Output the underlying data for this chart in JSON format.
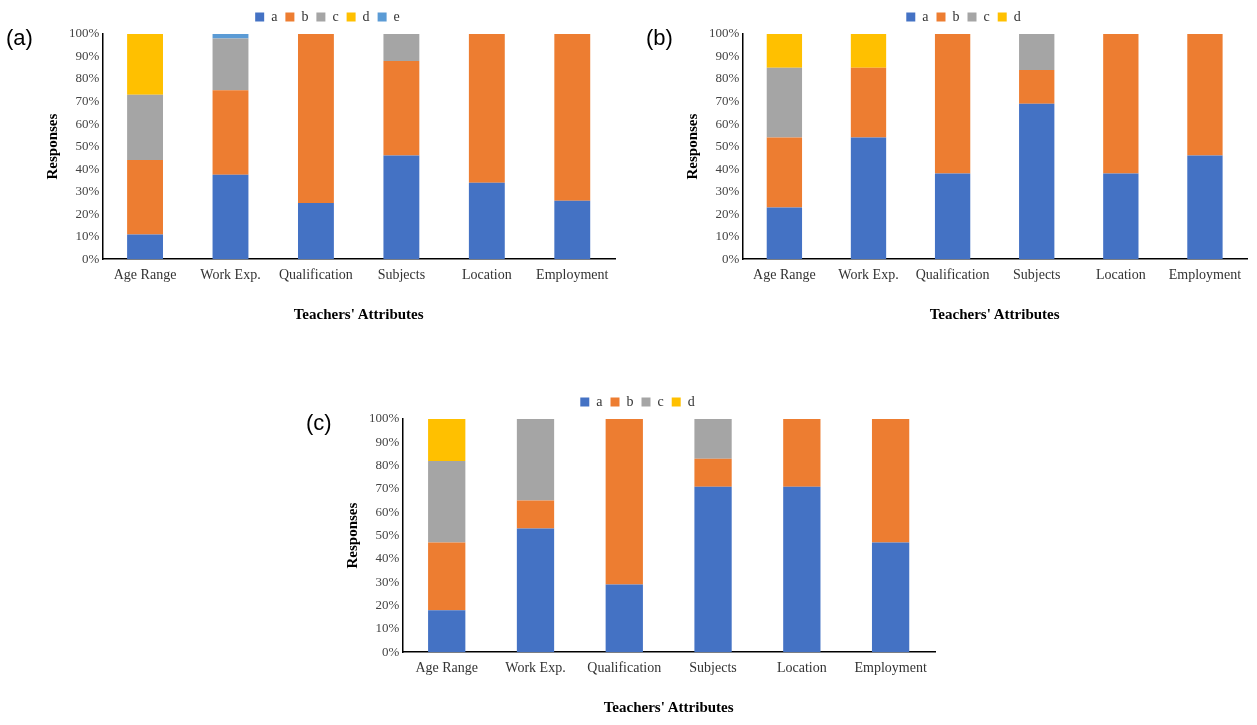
{
  "chart_data": [
    {
      "type": "bar",
      "stacked": true,
      "annotations": [
        "(a)"
      ],
      "xlabel": "Teachers' Attributes",
      "ylabel": "Responses",
      "legend": "top",
      "grid": false,
      "categories": [
        "Age Range",
        "Work Exp.",
        "Qualification",
        "Subjects",
        "Location",
        "Employment"
      ],
      "ylim": [
        0,
        100
      ],
      "yticks": [
        {
          "value": 0,
          "label": "0%"
        },
        {
          "value": 10,
          "label": "10%"
        },
        {
          "value": 20,
          "label": "20%"
        },
        {
          "value": 30,
          "label": "30%"
        },
        {
          "value": 40,
          "label": "40%"
        },
        {
          "value": 50,
          "label": "50%"
        },
        {
          "value": 60,
          "label": "60%"
        },
        {
          "value": 70,
          "label": "70%"
        },
        {
          "value": 80,
          "label": "80%"
        },
        {
          "value": 90,
          "label": "90%"
        },
        {
          "value": 100,
          "label": "100%"
        }
      ],
      "series": [
        {
          "name": "a",
          "color": "#4472c4",
          "values": [
            11,
            37.5,
            25,
            46,
            34,
            26
          ]
        },
        {
          "name": "b",
          "color": "#ed7d31",
          "values": [
            33,
            37.5,
            75,
            42,
            66,
            74
          ]
        },
        {
          "name": "c",
          "color": "#a5a5a5",
          "values": [
            29,
            23,
            null,
            12,
            null,
            null
          ]
        },
        {
          "name": "d",
          "color": "#ffc000",
          "values": [
            27,
            null,
            null,
            null,
            null,
            null
          ]
        },
        {
          "name": "e",
          "color": "#5b9bd5",
          "values": [
            null,
            2,
            null,
            null,
            null,
            null
          ]
        }
      ]
    },
    {
      "type": "bar",
      "stacked": true,
      "annotations": [
        "(b)"
      ],
      "xlabel": "Teachers' Attributes",
      "ylabel": "Responses",
      "legend": "top",
      "grid": false,
      "categories": [
        "Age Range",
        "Work Exp.",
        "Qualification",
        "Subjects",
        "Location",
        "Employment"
      ],
      "ylim": [
        0,
        100
      ],
      "yticks": [
        {
          "value": 0,
          "label": "0%"
        },
        {
          "value": 10,
          "label": "10%"
        },
        {
          "value": 20,
          "label": "20%"
        },
        {
          "value": 30,
          "label": "30%"
        },
        {
          "value": 40,
          "label": "40%"
        },
        {
          "value": 50,
          "label": "50%"
        },
        {
          "value": 60,
          "label": "60%"
        },
        {
          "value": 70,
          "label": "70%"
        },
        {
          "value": 80,
          "label": "80%"
        },
        {
          "value": 90,
          "label": "90%"
        },
        {
          "value": 100,
          "label": "100%"
        }
      ],
      "series": [
        {
          "name": "a",
          "color": "#4472c4",
          "values": [
            23,
            54,
            38,
            69,
            38,
            46
          ]
        },
        {
          "name": "b",
          "color": "#ed7d31",
          "values": [
            31,
            31,
            62,
            15,
            62,
            54
          ]
        },
        {
          "name": "c",
          "color": "#a5a5a5",
          "values": [
            31,
            null,
            null,
            16,
            null,
            null
          ]
        },
        {
          "name": "d",
          "color": "#ffc000",
          "values": [
            15,
            15,
            null,
            null,
            null,
            null
          ]
        }
      ]
    },
    {
      "type": "bar",
      "stacked": true,
      "annotations": [
        "(c)"
      ],
      "xlabel": "Teachers' Attributes",
      "ylabel": "Responses",
      "legend": "top",
      "grid": false,
      "categories": [
        "Age Range",
        "Work Exp.",
        "Qualification",
        "Subjects",
        "Location",
        "Employment"
      ],
      "ylim": [
        0,
        100
      ],
      "yticks": [
        {
          "value": 0,
          "label": "0%"
        },
        {
          "value": 10,
          "label": "10%"
        },
        {
          "value": 20,
          "label": "20%"
        },
        {
          "value": 30,
          "label": "30%"
        },
        {
          "value": 40,
          "label": "40%"
        },
        {
          "value": 50,
          "label": "50%"
        },
        {
          "value": 60,
          "label": "60%"
        },
        {
          "value": 70,
          "label": "70%"
        },
        {
          "value": 80,
          "label": "80%"
        },
        {
          "value": 90,
          "label": "90%"
        },
        {
          "value": 100,
          "label": "100%"
        }
      ],
      "series": [
        {
          "name": "a",
          "color": "#4472c4",
          "values": [
            18,
            53,
            29,
            71,
            71,
            47
          ]
        },
        {
          "name": "b",
          "color": "#ed7d31",
          "values": [
            29,
            12,
            71,
            12,
            29,
            53
          ]
        },
        {
          "name": "c",
          "color": "#a5a5a5",
          "values": [
            35,
            35,
            null,
            17,
            null,
            null
          ]
        },
        {
          "name": "d",
          "color": "#ffc000",
          "values": [
            18,
            null,
            null,
            null,
            null,
            null
          ]
        }
      ]
    }
  ]
}
